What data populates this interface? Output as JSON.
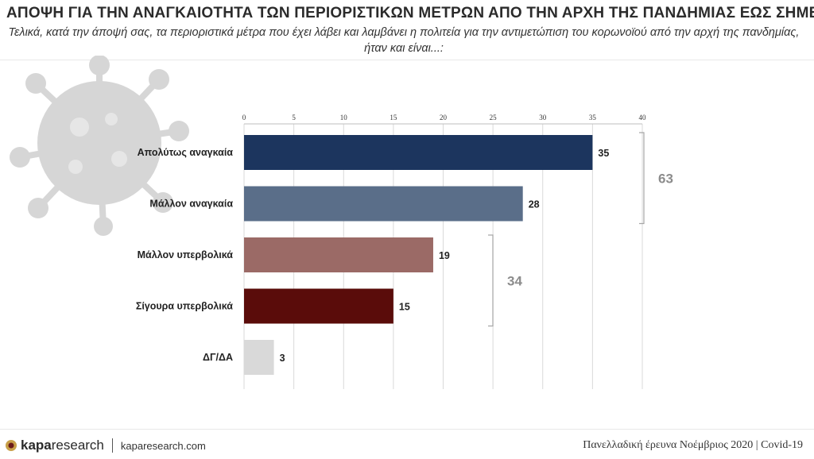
{
  "header": {
    "title": "ΑΠΟΨΗ ΓΙΑ ΤΗΝ ΑΝΑΓΚΑΙΟΤΗΤΑ ΤΩΝ ΠΕΡΙΟΡΙΣΤΙΚΩΝ ΜΕΤΡΩΝ ΑΠΟ ΤΗΝ ΑΡΧΗ ΤΗΣ ΠΑΝΔΗΜΙΑΣ ΕΩΣ ΣΗΜΕΡΑ",
    "subtitle": "Τελικά, κατά την άποψή σας, τα περιοριστικά μέτρα που έχει λάβει και λαμβάνει η πολιτεία για την αντιμετώπιση του κορωνοϊού από την αρχή της πανδημίας, ήταν και είναι...:"
  },
  "chart_data": {
    "type": "bar",
    "orientation": "horizontal",
    "categories": [
      "Απολύτως αναγκαία",
      "Μάλλον αναγκαία",
      "Μάλλον υπερβολικά",
      "Σίγουρα υπερβολικά",
      "ΔΓ/ΔΑ"
    ],
    "values": [
      35,
      28,
      19,
      15,
      3
    ],
    "colors": [
      "#1c355e",
      "#5a6e89",
      "#9b6a66",
      "#5a0c0a",
      "#d9d9d9"
    ],
    "xlim": [
      0,
      40
    ],
    "xticks": [
      0,
      5,
      10,
      15,
      20,
      25,
      30,
      35,
      40
    ],
    "x_axis_position": "top",
    "grid": true,
    "groups": [
      {
        "label": "63",
        "members": [
          0,
          1
        ]
      },
      {
        "label": "34",
        "members": [
          2,
          3
        ]
      }
    ]
  },
  "footer": {
    "brand_bold": "kapa",
    "brand_light": "research",
    "website": "kaparesearch.com",
    "survey": "Πανελλαδική έρευνα Νοέμβριος 2020",
    "topic": "Covid-19"
  }
}
